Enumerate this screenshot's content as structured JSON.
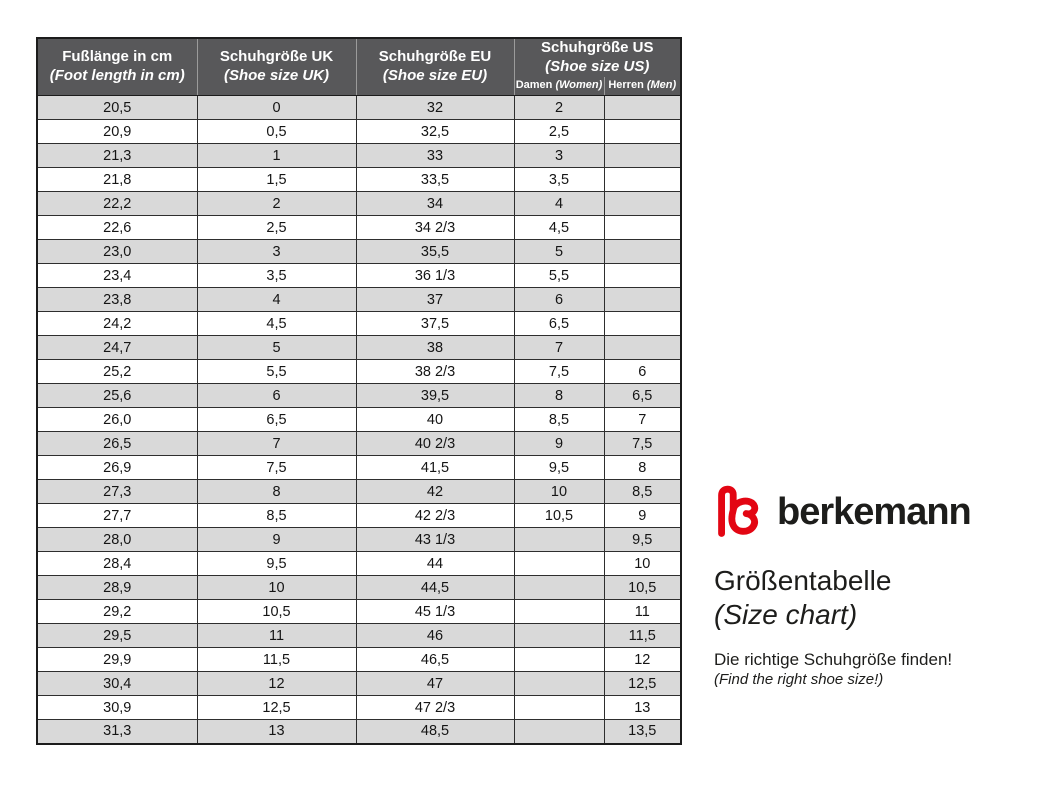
{
  "table": {
    "headers": {
      "foot_length_de": "Fußlänge in cm",
      "foot_length_en": "(Foot length in cm)",
      "uk_de": "Schuhgröße UK",
      "uk_en": "(Shoe size UK)",
      "eu_de": "Schuhgröße EU",
      "eu_en": "(Shoe size EU)",
      "us_de": "Schuhgröße US",
      "us_en": "(Shoe size US)",
      "damen_de": "Damen",
      "damen_en": "(Women)",
      "herren_de": "Herren",
      "herren_en": "(Men)"
    },
    "columns": [
      "foot_length_cm",
      "shoe_size_uk",
      "shoe_size_eu",
      "shoe_size_us_women",
      "shoe_size_us_men"
    ],
    "rows": [
      [
        "20,5",
        "0",
        "32",
        "2",
        ""
      ],
      [
        "20,9",
        "0,5",
        "32,5",
        "2,5",
        ""
      ],
      [
        "21,3",
        "1",
        "33",
        "3",
        ""
      ],
      [
        "21,8",
        "1,5",
        "33,5",
        "3,5",
        ""
      ],
      [
        "22,2",
        "2",
        "34",
        "4",
        ""
      ],
      [
        "22,6",
        "2,5",
        "34 2/3",
        "4,5",
        ""
      ],
      [
        "23,0",
        "3",
        "35,5",
        "5",
        ""
      ],
      [
        "23,4",
        "3,5",
        "36 1/3",
        "5,5",
        ""
      ],
      [
        "23,8",
        "4",
        "37",
        "6",
        ""
      ],
      [
        "24,2",
        "4,5",
        "37,5",
        "6,5",
        ""
      ],
      [
        "24,7",
        "5",
        "38",
        "7",
        ""
      ],
      [
        "25,2",
        "5,5",
        "38 2/3",
        "7,5",
        "6"
      ],
      [
        "25,6",
        "6",
        "39,5",
        "8",
        "6,5"
      ],
      [
        "26,0",
        "6,5",
        "40",
        "8,5",
        "7"
      ],
      [
        "26,5",
        "7",
        "40 2/3",
        "9",
        "7,5"
      ],
      [
        "26,9",
        "7,5",
        "41,5",
        "9,5",
        "8"
      ],
      [
        "27,3",
        "8",
        "42",
        "10",
        "8,5"
      ],
      [
        "27,7",
        "8,5",
        "42 2/3",
        "10,5",
        "9"
      ],
      [
        "28,0",
        "9",
        "43 1/3",
        "",
        "9,5"
      ],
      [
        "28,4",
        "9,5",
        "44",
        "",
        "10"
      ],
      [
        "28,9",
        "10",
        "44,5",
        "",
        "10,5"
      ],
      [
        "29,2",
        "10,5",
        "45 1/3",
        "",
        "11"
      ],
      [
        "29,5",
        "11",
        "46",
        "",
        "11,5"
      ],
      [
        "29,9",
        "11,5",
        "46,5",
        "",
        "12"
      ],
      [
        "30,4",
        "12",
        "47",
        "",
        "12,5"
      ],
      [
        "30,9",
        "12,5",
        "47 2/3",
        "",
        "13"
      ],
      [
        "31,3",
        "13",
        "48,5",
        "",
        "13,5"
      ]
    ]
  },
  "branding": {
    "brand": "berkemann",
    "logo_icon": "berkemann-heart-b-logo",
    "title_de": "Größentabelle",
    "title_en": "(Size chart)",
    "tagline_de": "Die richtige Schuhgröße finden!",
    "tagline_en": "(Find the right shoe size!)"
  },
  "colors": {
    "header_bg": "#58585a",
    "row_stripe": "#d9d9d9",
    "border": "#2e2e2e",
    "logo_red": "#e30613",
    "text": "#1d1d1b"
  }
}
